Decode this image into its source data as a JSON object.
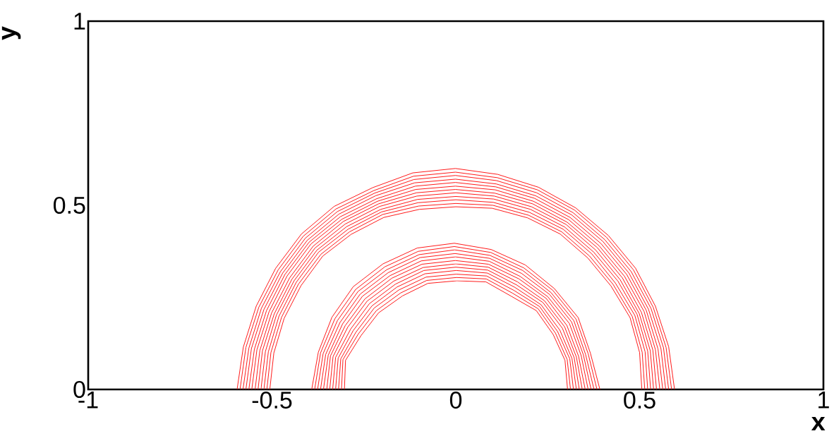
{
  "chart_data": {
    "type": "line",
    "xlabel": "x",
    "ylabel": "y",
    "xlim": [
      -1,
      1
    ],
    "ylim": [
      0,
      1
    ],
    "xticks": [
      -1,
      -0.5,
      0,
      0.5,
      1
    ],
    "yticks": [
      0,
      0.5,
      1
    ],
    "grid": false,
    "marker": "none",
    "line_style": "solid",
    "series": [
      {
        "color": "#ff0000",
        "x": [
          -0.506,
          -0.495,
          -0.467,
          -0.421,
          -0.362,
          -0.285,
          -0.196,
          -0.099,
          0.0,
          0.099,
          0.195,
          0.284,
          0.359,
          0.422,
          0.474,
          0.5,
          0.506
        ],
        "values": [
          0.0,
          0.099,
          0.193,
          0.282,
          0.362,
          0.421,
          0.467,
          0.489,
          0.496,
          0.492,
          0.466,
          0.422,
          0.357,
          0.281,
          0.195,
          0.1,
          0.0
        ]
      },
      {
        "color": "#ff0000",
        "x": [
          -0.514,
          -0.503,
          -0.474,
          -0.428,
          -0.367,
          -0.289,
          -0.199,
          -0.101,
          0.0,
          0.101,
          0.198,
          0.288,
          0.364,
          0.428,
          0.48,
          0.507,
          0.514
        ],
        "values": [
          0.0,
          0.1,
          0.196,
          0.286,
          0.367,
          0.428,
          0.475,
          0.498,
          0.505,
          0.5,
          0.473,
          0.428,
          0.362,
          0.285,
          0.198,
          0.101,
          0.0
        ]
      },
      {
        "color": "#ff0000",
        "x": [
          -0.522,
          -0.51,
          -0.481,
          -0.434,
          -0.373,
          -0.293,
          -0.202,
          -0.103,
          0.0,
          0.102,
          0.2,
          0.292,
          0.37,
          0.434,
          0.487,
          0.515,
          0.522
        ],
        "values": [
          0.0,
          0.102,
          0.199,
          0.291,
          0.373,
          0.435,
          0.482,
          0.507,
          0.515,
          0.508,
          0.481,
          0.435,
          0.368,
          0.289,
          0.201,
          0.102,
          0.0
        ]
      },
      {
        "color": "#ff0000",
        "x": [
          -0.53,
          -0.518,
          -0.488,
          -0.44,
          -0.378,
          -0.297,
          -0.204,
          -0.104,
          0.0,
          0.103,
          0.203,
          0.296,
          0.375,
          0.441,
          0.493,
          0.522,
          0.53
        ],
        "values": [
          0.0,
          0.103,
          0.202,
          0.295,
          0.378,
          0.442,
          0.489,
          0.516,
          0.524,
          0.517,
          0.489,
          0.441,
          0.373,
          0.294,
          0.204,
          0.104,
          0.0
        ]
      },
      {
        "color": "#ff0000",
        "x": [
          -0.538,
          -0.526,
          -0.494,
          -0.446,
          -0.383,
          -0.301,
          -0.207,
          -0.106,
          0.0,
          0.105,
          0.206,
          0.3,
          0.38,
          0.447,
          0.499,
          0.529,
          0.538
        ],
        "values": [
          0.0,
          0.105,
          0.205,
          0.299,
          0.384,
          0.449,
          0.497,
          0.525,
          0.534,
          0.525,
          0.496,
          0.448,
          0.379,
          0.298,
          0.206,
          0.105,
          0.0
        ]
      },
      {
        "color": "#ff0000",
        "x": [
          -0.546,
          -0.533,
          -0.501,
          -0.452,
          -0.388,
          -0.306,
          -0.21,
          -0.107,
          -0.001,
          0.106,
          0.209,
          0.303,
          0.385,
          0.453,
          0.505,
          0.536,
          0.546
        ],
        "values": [
          0.0,
          0.106,
          0.208,
          0.303,
          0.389,
          0.456,
          0.504,
          0.534,
          0.543,
          0.533,
          0.504,
          0.454,
          0.385,
          0.303,
          0.209,
          0.107,
          0.0
        ]
      },
      {
        "color": "#ff0000",
        "x": [
          -0.555,
          -0.541,
          -0.508,
          -0.459,
          -0.394,
          -0.31,
          -0.213,
          -0.109,
          -0.001,
          0.107,
          0.211,
          0.307,
          0.39,
          0.459,
          0.512,
          0.543,
          0.555
        ],
        "values": [
          0.0,
          0.108,
          0.211,
          0.308,
          0.395,
          0.462,
          0.511,
          0.543,
          0.552,
          0.542,
          0.511,
          0.461,
          0.39,
          0.307,
          0.212,
          0.108,
          0.0
        ]
      },
      {
        "color": "#ff0000",
        "x": [
          -0.563,
          -0.548,
          -0.515,
          -0.465,
          -0.399,
          -0.314,
          -0.215,
          -0.11,
          -0.001,
          0.109,
          0.214,
          0.311,
          0.395,
          0.465,
          0.518,
          0.55,
          0.563
        ],
        "values": [
          0.0,
          0.109,
          0.214,
          0.312,
          0.4,
          0.469,
          0.518,
          0.552,
          0.562,
          0.55,
          0.519,
          0.467,
          0.396,
          0.312,
          0.215,
          0.11,
          0.0
        ]
      },
      {
        "color": "#ff0000",
        "x": [
          -0.571,
          -0.556,
          -0.522,
          -0.471,
          -0.404,
          -0.318,
          -0.218,
          -0.112,
          -0.001,
          0.11,
          0.217,
          0.315,
          0.4,
          0.471,
          0.524,
          0.558,
          0.571
        ],
        "values": [
          0.0,
          0.111,
          0.217,
          0.316,
          0.405,
          0.476,
          0.526,
          0.561,
          0.571,
          0.558,
          0.526,
          0.474,
          0.402,
          0.316,
          0.218,
          0.111,
          0.0
        ]
      },
      {
        "color": "#ff0000",
        "x": [
          -0.579,
          -0.563,
          -0.529,
          -0.477,
          -0.409,
          -0.322,
          -0.221,
          -0.114,
          -0.001,
          0.111,
          0.22,
          0.319,
          0.405,
          0.477,
          0.531,
          0.565,
          0.579
        ],
        "values": [
          0.0,
          0.112,
          0.22,
          0.32,
          0.411,
          0.483,
          0.533,
          0.57,
          0.581,
          0.567,
          0.534,
          0.48,
          0.407,
          0.32,
          0.22,
          0.113,
          0.0
        ]
      },
      {
        "color": "#ff0000",
        "x": [
          -0.587,
          -0.571,
          -0.536,
          -0.483,
          -0.415,
          -0.326,
          -0.223,
          -0.115,
          -0.001,
          0.113,
          0.222,
          0.323,
          0.41,
          0.483,
          0.537,
          0.572,
          0.587
        ],
        "values": [
          0.0,
          0.114,
          0.223,
          0.325,
          0.416,
          0.49,
          0.54,
          0.579,
          0.59,
          0.575,
          0.542,
          0.487,
          0.413,
          0.325,
          0.223,
          0.114,
          0.0
        ]
      },
      {
        "color": "#ff0000",
        "x": [
          -0.595,
          -0.578,
          -0.543,
          -0.49,
          -0.42,
          -0.331,
          -0.226,
          -0.117,
          -0.001,
          0.114,
          0.225,
          0.326,
          0.415,
          0.489,
          0.543,
          0.579,
          0.595
        ],
        "values": [
          0.0,
          0.115,
          0.226,
          0.329,
          0.422,
          0.497,
          0.548,
          0.588,
          0.6,
          0.584,
          0.549,
          0.493,
          0.418,
          0.329,
          0.226,
          0.116,
          0.0
        ]
      },
      {
        "color": "#ff0000",
        "x": [
          -0.303,
          -0.3,
          -0.258,
          -0.21,
          -0.145,
          -0.076,
          0.003,
          0.082,
          0.151,
          0.219,
          0.265,
          0.297,
          0.304
        ],
        "values": [
          0.0,
          0.079,
          0.146,
          0.208,
          0.254,
          0.288,
          0.295,
          0.292,
          0.253,
          0.214,
          0.149,
          0.079,
          0.0
        ]
      },
      {
        "color": "#ff0000",
        "x": [
          -0.311,
          -0.307,
          -0.265,
          -0.216,
          -0.15,
          -0.079,
          0.002,
          0.083,
          0.155,
          0.224,
          0.271,
          0.303,
          0.312
        ],
        "values": [
          0.0,
          0.081,
          0.151,
          0.214,
          0.262,
          0.296,
          0.304,
          0.3,
          0.261,
          0.219,
          0.153,
          0.081,
          0.0
        ]
      },
      {
        "color": "#ff0000",
        "x": [
          -0.319,
          -0.313,
          -0.272,
          -0.222,
          -0.155,
          -0.081,
          0.001,
          0.084,
          0.158,
          0.228,
          0.277,
          0.31,
          0.32
        ],
        "values": [
          0.0,
          0.083,
          0.155,
          0.221,
          0.27,
          0.305,
          0.313,
          0.308,
          0.269,
          0.225,
          0.157,
          0.083,
          0.0
        ]
      },
      {
        "color": "#ff0000",
        "x": [
          -0.327,
          -0.32,
          -0.279,
          -0.228,
          -0.16,
          -0.084,
          0.001,
          0.086,
          0.161,
          0.232,
          0.283,
          0.316,
          0.328
        ],
        "values": [
          0.0,
          0.085,
          0.16,
          0.227,
          0.278,
          0.314,
          0.323,
          0.316,
          0.277,
          0.23,
          0.161,
          0.084,
          0.0
        ]
      },
      {
        "color": "#ff0000",
        "x": [
          -0.335,
          -0.327,
          -0.286,
          -0.235,
          -0.164,
          -0.087,
          0.0,
          0.087,
          0.165,
          0.237,
          0.29,
          0.322,
          0.336
        ],
        "values": [
          0.0,
          0.087,
          0.164,
          0.233,
          0.286,
          0.323,
          0.332,
          0.324,
          0.284,
          0.236,
          0.166,
          0.086,
          0.0
        ]
      },
      {
        "color": "#ff0000",
        "x": [
          -0.343,
          -0.334,
          -0.294,
          -0.241,
          -0.169,
          -0.089,
          0.0,
          0.088,
          0.168,
          0.241,
          0.296,
          0.328,
          0.344
        ],
        "values": [
          0.0,
          0.089,
          0.169,
          0.24,
          0.294,
          0.331,
          0.341,
          0.332,
          0.292,
          0.241,
          0.17,
          0.088,
          0.0
        ]
      },
      {
        "color": "#ff0000",
        "x": [
          -0.351,
          -0.341,
          -0.301,
          -0.247,
          -0.174,
          -0.092,
          -0.001,
          0.089,
          0.172,
          0.246,
          0.302,
          0.334,
          0.352
        ],
        "values": [
          0.0,
          0.091,
          0.173,
          0.246,
          0.302,
          0.34,
          0.35,
          0.34,
          0.3,
          0.247,
          0.174,
          0.09,
          0.0
        ]
      },
      {
        "color": "#ff0000",
        "x": [
          -0.36,
          -0.347,
          -0.308,
          -0.254,
          -0.179,
          -0.094,
          -0.001,
          0.091,
          0.175,
          0.25,
          0.309,
          0.341,
          0.36
        ],
        "values": [
          0.0,
          0.093,
          0.178,
          0.253,
          0.309,
          0.349,
          0.36,
          0.348,
          0.307,
          0.252,
          0.179,
          0.092,
          0.0
        ]
      },
      {
        "color": "#ff0000",
        "x": [
          -0.368,
          -0.354,
          -0.315,
          -0.26,
          -0.184,
          -0.097,
          -0.002,
          0.092,
          0.179,
          0.255,
          0.315,
          0.347,
          0.368
        ],
        "values": [
          0.0,
          0.095,
          0.182,
          0.259,
          0.317,
          0.358,
          0.369,
          0.356,
          0.315,
          0.258,
          0.183,
          0.094,
          0.0
        ]
      },
      {
        "color": "#ff0000",
        "x": [
          -0.376,
          -0.361,
          -0.322,
          -0.266,
          -0.188,
          -0.1,
          -0.003,
          0.093,
          0.182,
          0.259,
          0.321,
          0.353,
          0.376
        ],
        "values": [
          0.0,
          0.097,
          0.187,
          0.266,
          0.325,
          0.366,
          0.379,
          0.364,
          0.323,
          0.263,
          0.187,
          0.095,
          0.0
        ]
      },
      {
        "color": "#ff0000",
        "x": [
          -0.384,
          -0.368,
          -0.329,
          -0.272,
          -0.193,
          -0.102,
          -0.004,
          0.095,
          0.185,
          0.264,
          0.327,
          0.36,
          0.384
        ],
        "values": [
          0.0,
          0.099,
          0.192,
          0.272,
          0.333,
          0.375,
          0.388,
          0.372,
          0.33,
          0.269,
          0.191,
          0.097,
          0.0
        ]
      },
      {
        "color": "#ff0000",
        "x": [
          -0.392,
          -0.374,
          -0.337,
          -0.279,
          -0.198,
          -0.105,
          -0.004,
          0.096,
          0.189,
          0.268,
          0.333,
          0.366,
          0.392
        ],
        "values": [
          0.0,
          0.101,
          0.196,
          0.279,
          0.341,
          0.384,
          0.397,
          0.38,
          0.338,
          0.274,
          0.195,
          0.099,
          0.0
        ]
      }
    ]
  }
}
